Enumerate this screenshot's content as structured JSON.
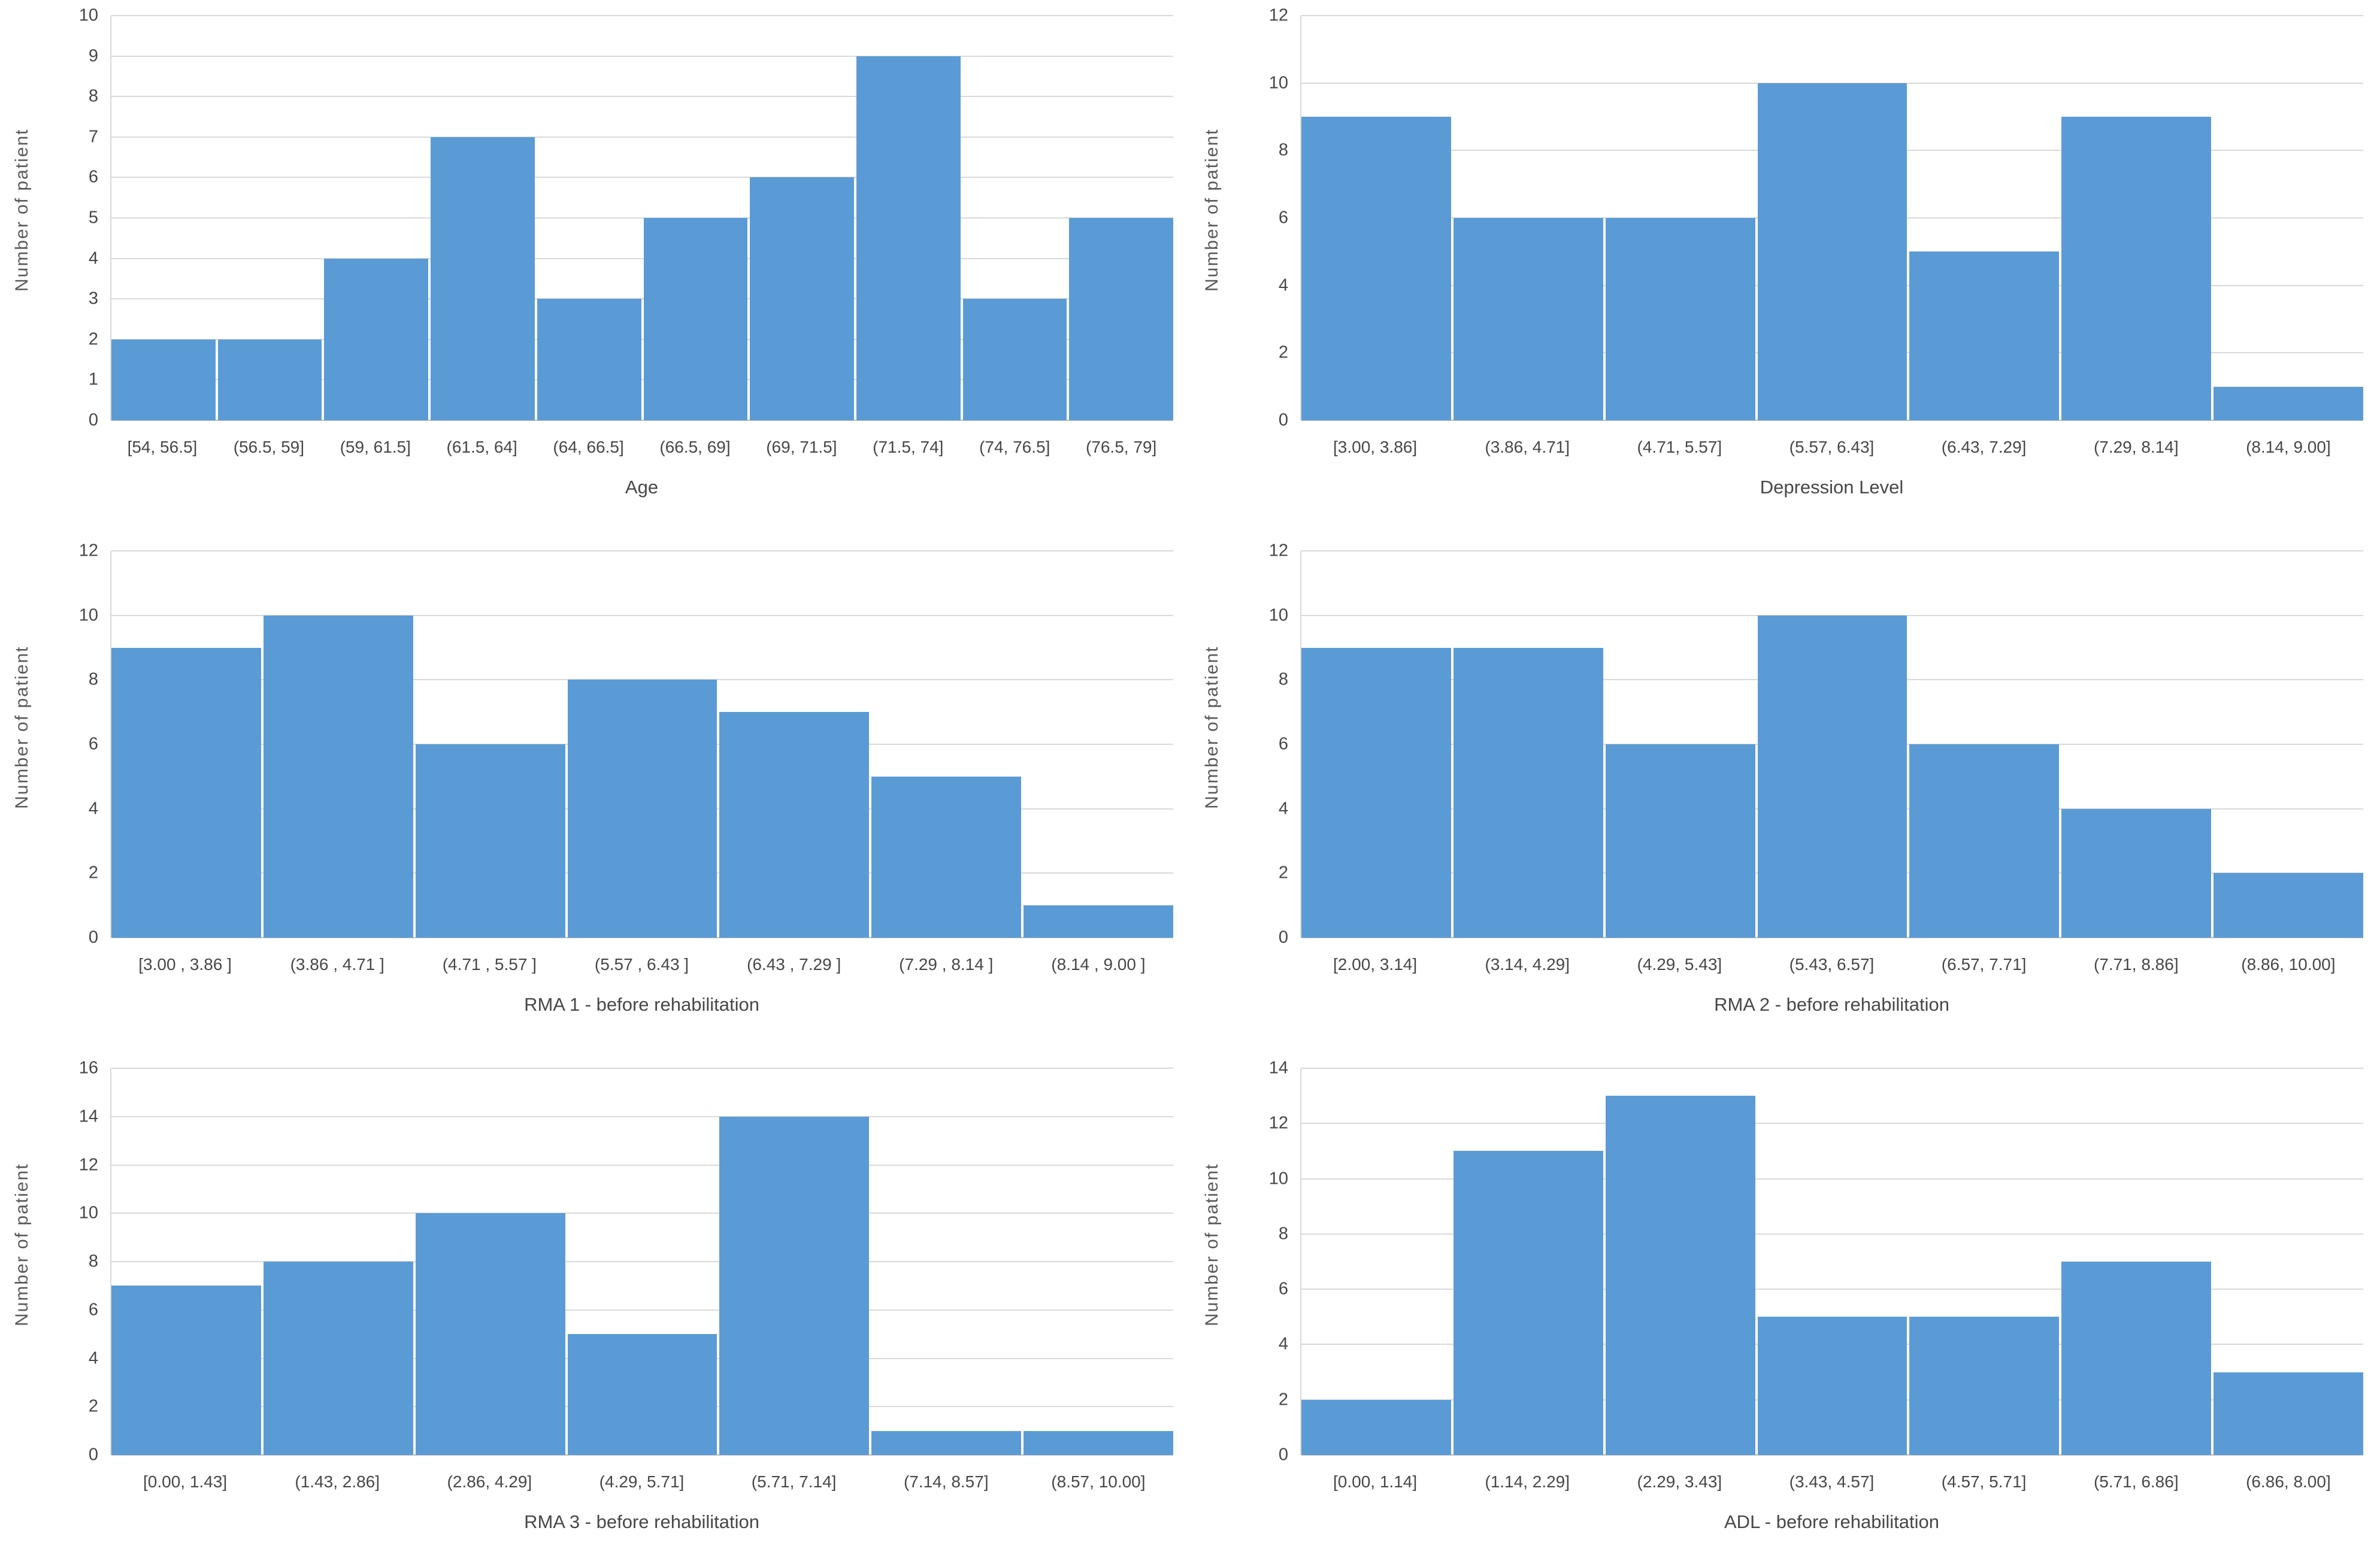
{
  "colors": {
    "bar": "#5B9BD5",
    "gridline": "#D9D9D9",
    "axis_line": "#BFBFBF",
    "tick_text": "#474747",
    "title_text": "#595959"
  },
  "chart_data": [
    {
      "type": "bar",
      "title": "",
      "xlabel": "Age",
      "ylabel": "Number of patient",
      "ylim": [
        0,
        10
      ],
      "ytick_step": 1,
      "grid": true,
      "legend": false,
      "categories": [
        "[54, 56.5]",
        "(56.5, 59]",
        "(59, 61.5]",
        "(61.5, 64]",
        "(64, 66.5]",
        "(66.5, 69]",
        "(69, 71.5]",
        "(71.5, 74]",
        "(74, 76.5]",
        "(76.5, 79]"
      ],
      "values": [
        2,
        2,
        4,
        7,
        3,
        5,
        6,
        9,
        3,
        5
      ]
    },
    {
      "type": "bar",
      "title": "",
      "xlabel": "Depression Level",
      "ylabel": "Number of patient",
      "ylim": [
        0,
        12
      ],
      "ytick_step": 2,
      "grid": true,
      "legend": false,
      "categories": [
        "[3.00, 3.86]",
        "(3.86, 4.71]",
        "(4.71, 5.57]",
        "(5.57, 6.43]",
        "(6.43, 7.29]",
        "(7.29, 8.14]",
        "(8.14, 9.00]"
      ],
      "values": [
        9,
        6,
        6,
        10,
        5,
        9,
        1
      ]
    },
    {
      "type": "bar",
      "title": "",
      "xlabel": "RMA 1 - before rehabilitation",
      "ylabel": "Number of patient",
      "ylim": [
        0,
        12
      ],
      "ytick_step": 2,
      "grid": true,
      "legend": false,
      "categories": [
        "[3.00 , 3.86 ]",
        "(3.86 , 4.71 ]",
        "(4.71 , 5.57 ]",
        "(5.57 , 6.43 ]",
        "(6.43 , 7.29 ]",
        "(7.29 , 8.14 ]",
        "(8.14 , 9.00 ]"
      ],
      "values": [
        9,
        10,
        6,
        8,
        7,
        5,
        1
      ]
    },
    {
      "type": "bar",
      "title": "",
      "xlabel": "RMA 2 - before rehabilitation",
      "ylabel": "Number of patient",
      "ylim": [
        0,
        12
      ],
      "ytick_step": 2,
      "grid": true,
      "legend": false,
      "categories": [
        "[2.00, 3.14]",
        "(3.14, 4.29]",
        "(4.29, 5.43]",
        "(5.43, 6.57]",
        "(6.57, 7.71]",
        "(7.71, 8.86]",
        "(8.86, 10.00]"
      ],
      "values": [
        9,
        9,
        6,
        10,
        6,
        4,
        2
      ]
    },
    {
      "type": "bar",
      "title": "",
      "xlabel": "RMA 3 - before rehabilitation",
      "ylabel": "Number of patient",
      "ylim": [
        0,
        16
      ],
      "ytick_step": 2,
      "grid": true,
      "legend": false,
      "categories": [
        "[0.00, 1.43]",
        "(1.43, 2.86]",
        "(2.86, 4.29]",
        "(4.29, 5.71]",
        "(5.71, 7.14]",
        "(7.14, 8.57]",
        "(8.57, 10.00]"
      ],
      "values": [
        7,
        8,
        10,
        5,
        14,
        1,
        1
      ]
    },
    {
      "type": "bar",
      "title": "",
      "xlabel": "ADL - before rehabilitation",
      "ylabel": "Number of patient",
      "ylim": [
        0,
        14
      ],
      "ytick_step": 2,
      "grid": true,
      "legend": false,
      "categories": [
        "[0.00, 1.14]",
        "(1.14, 2.29]",
        "(2.29, 3.43]",
        "(3.43, 4.57]",
        "(4.57, 5.71]",
        "(5.71, 6.86]",
        "(6.86, 8.00]"
      ],
      "values": [
        2,
        11,
        13,
        5,
        5,
        7,
        3
      ]
    }
  ]
}
